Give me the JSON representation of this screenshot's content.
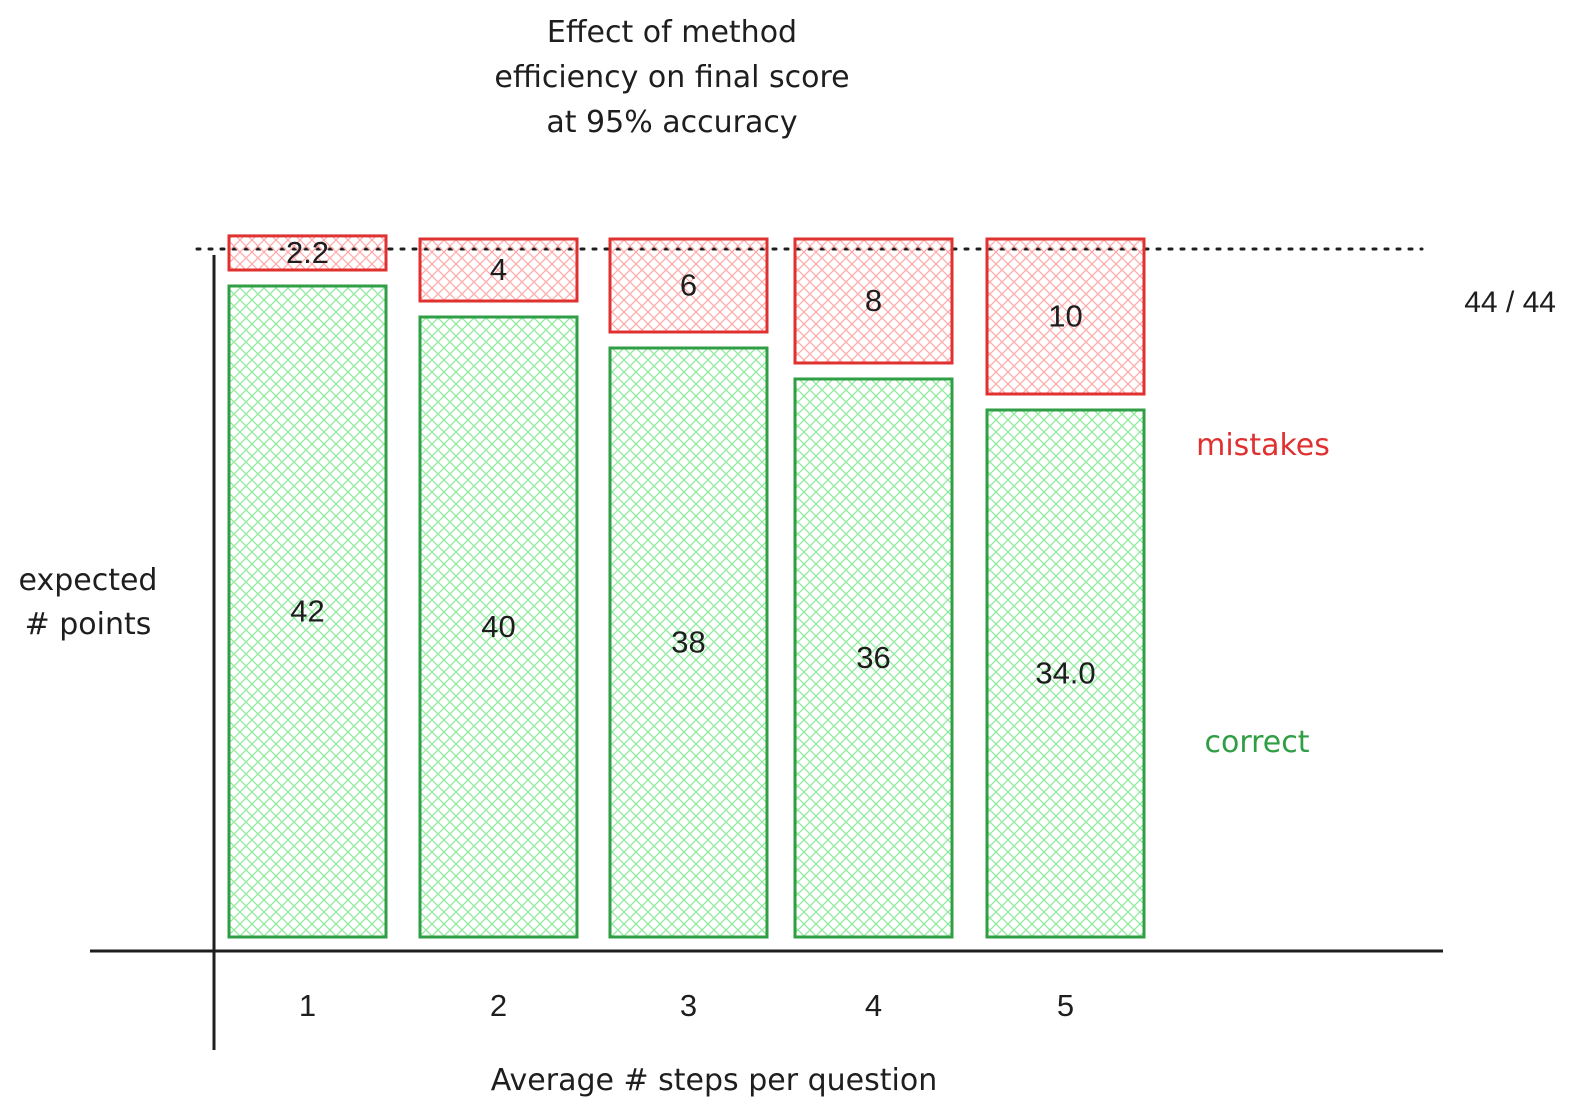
{
  "chart_data": {
    "type": "bar",
    "stacked": true,
    "title_lines": [
      "Effect of method",
      "efficiency on final score",
      "at 95% accuracy"
    ],
    "xlabel": "Average # steps per question",
    "ylabel_lines": [
      "expected",
      "# points"
    ],
    "categories": [
      "1",
      "2",
      "3",
      "4",
      "5"
    ],
    "series": [
      {
        "name": "correct",
        "values": [
          42,
          40,
          38,
          36,
          34
        ],
        "value_labels": [
          "42",
          "40",
          "38",
          "36",
          "34.0"
        ]
      },
      {
        "name": "mistakes",
        "values": [
          2.2,
          4,
          6,
          8,
          10
        ],
        "value_labels": [
          "2.2",
          "4",
          "6",
          "8",
          "10"
        ]
      }
    ],
    "reference_line": {
      "value": 44,
      "label": "44 / 44",
      "style": "dotted"
    },
    "ylim": [
      0,
      44
    ],
    "grid": false,
    "legend": "right, inline labels",
    "colors": {
      "correct_stroke": "#2f9e44",
      "correct_fill": "#b2f2bb",
      "mistakes_stroke": "#e03131",
      "mistakes_fill": "#ffc9c9",
      "axis": "#1e1e1e"
    }
  }
}
